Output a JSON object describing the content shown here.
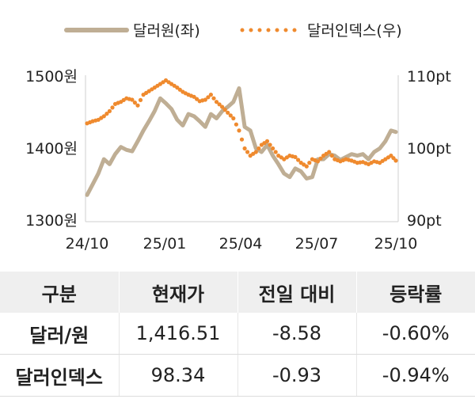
{
  "chart_data": {
    "type": "line",
    "legend": [
      {
        "label": "달러원(좌)",
        "color": "#bfae94",
        "style": "solid"
      },
      {
        "label": "달러인덱스(우)",
        "color": "#ef8a2e",
        "style": "dotted"
      }
    ],
    "x_ticks": [
      "24/10",
      "25/01",
      "25/04",
      "25/07",
      "25/10"
    ],
    "x_range": [
      "2024-10-01",
      "2025-10-20"
    ],
    "y_left": {
      "ticks": [
        "1300원",
        "1400원",
        "1500원"
      ],
      "range": [
        1300,
        1500
      ]
    },
    "y_right": {
      "ticks": [
        "90pt",
        "100pt",
        "110pt"
      ],
      "range": [
        90,
        110
      ]
    },
    "grid": false,
    "series": [
      {
        "name": "달러원(좌)",
        "axis": "left",
        "color": "#bfae94",
        "x": [
          "2024-10-01",
          "2024-10-08",
          "2024-10-15",
          "2024-10-22",
          "2024-10-29",
          "2024-11-05",
          "2024-11-12",
          "2024-11-19",
          "2024-11-26",
          "2024-12-03",
          "2024-12-10",
          "2024-12-17",
          "2024-12-24",
          "2024-12-31",
          "2025-01-07",
          "2025-01-14",
          "2025-01-21",
          "2025-01-28",
          "2025-02-04",
          "2025-02-11",
          "2025-02-18",
          "2025-02-25",
          "2025-03-04",
          "2025-03-11",
          "2025-03-18",
          "2025-03-25",
          "2025-04-01",
          "2025-04-08",
          "2025-04-15",
          "2025-04-22",
          "2025-04-29",
          "2025-05-06",
          "2025-05-13",
          "2025-05-20",
          "2025-05-27",
          "2025-06-03",
          "2025-06-10",
          "2025-06-17",
          "2025-06-24",
          "2025-07-01",
          "2025-07-08",
          "2025-07-15",
          "2025-07-22",
          "2025-07-29",
          "2025-08-05",
          "2025-08-12",
          "2025-08-19",
          "2025-08-26",
          "2025-09-02",
          "2025-09-09",
          "2025-09-16",
          "2025-09-23",
          "2025-09-30",
          "2025-10-07",
          "2025-10-14",
          "2025-10-20"
        ],
        "values": [
          1335,
          1350,
          1365,
          1385,
          1378,
          1392,
          1402,
          1398,
          1396,
          1410,
          1425,
          1438,
          1452,
          1470,
          1463,
          1455,
          1440,
          1432,
          1448,
          1445,
          1438,
          1430,
          1448,
          1442,
          1452,
          1458,
          1465,
          1484,
          1430,
          1425,
          1400,
          1395,
          1405,
          1390,
          1378,
          1365,
          1360,
          1372,
          1368,
          1358,
          1360,
          1385,
          1385,
          1392,
          1390,
          1384,
          1388,
          1392,
          1390,
          1392,
          1385,
          1395,
          1400,
          1410,
          1425,
          1423
        ]
      },
      {
        "name": "달러인덱스(우)",
        "axis": "right",
        "color": "#ef8a2e",
        "x": [
          "2024-10-01",
          "2024-10-08",
          "2024-10-15",
          "2024-10-22",
          "2024-10-29",
          "2024-11-05",
          "2024-11-12",
          "2024-11-19",
          "2024-11-26",
          "2024-12-03",
          "2024-12-10",
          "2024-12-17",
          "2024-12-24",
          "2024-12-31",
          "2025-01-07",
          "2025-01-14",
          "2025-01-21",
          "2025-01-28",
          "2025-02-04",
          "2025-02-11",
          "2025-02-18",
          "2025-02-25",
          "2025-03-04",
          "2025-03-11",
          "2025-03-18",
          "2025-03-25",
          "2025-04-01",
          "2025-04-08",
          "2025-04-15",
          "2025-04-22",
          "2025-04-29",
          "2025-05-06",
          "2025-05-13",
          "2025-05-20",
          "2025-05-27",
          "2025-06-03",
          "2025-06-10",
          "2025-06-17",
          "2025-06-24",
          "2025-07-01",
          "2025-07-08",
          "2025-07-15",
          "2025-07-22",
          "2025-07-29",
          "2025-08-05",
          "2025-08-12",
          "2025-08-19",
          "2025-08-26",
          "2025-09-02",
          "2025-09-09",
          "2025-09-16",
          "2025-09-23",
          "2025-09-30",
          "2025-10-07",
          "2025-10-14",
          "2025-10-20"
        ],
        "values": [
          103.5,
          103.8,
          104.0,
          104.5,
          105.2,
          106.2,
          106.5,
          107.0,
          106.8,
          106.0,
          107.5,
          108.0,
          108.5,
          109.0,
          109.5,
          109.0,
          108.5,
          107.9,
          107.5,
          107.2,
          106.6,
          106.8,
          107.5,
          106.5,
          105.8,
          105.0,
          104.2,
          102.5,
          100.0,
          99.0,
          99.5,
          100.5,
          101.0,
          100.0,
          99.0,
          98.5,
          99.0,
          98.8,
          98.0,
          97.5,
          98.5,
          98.2,
          99.0,
          99.5,
          98.5,
          98.2,
          98.5,
          98.3,
          98.0,
          98.1,
          97.8,
          98.2,
          98.0,
          98.5,
          99.0,
          98.3
        ]
      }
    ]
  },
  "table": {
    "headers": [
      "구분",
      "현재가",
      "전일 대비",
      "등락률"
    ],
    "rows": [
      {
        "name": "달러/원",
        "price": "1,416.51",
        "change": "-8.58",
        "rate": "-0.60%"
      },
      {
        "name": "달러인덱스",
        "price": "98.34",
        "change": "-0.93",
        "rate": "-0.94%"
      }
    ]
  }
}
